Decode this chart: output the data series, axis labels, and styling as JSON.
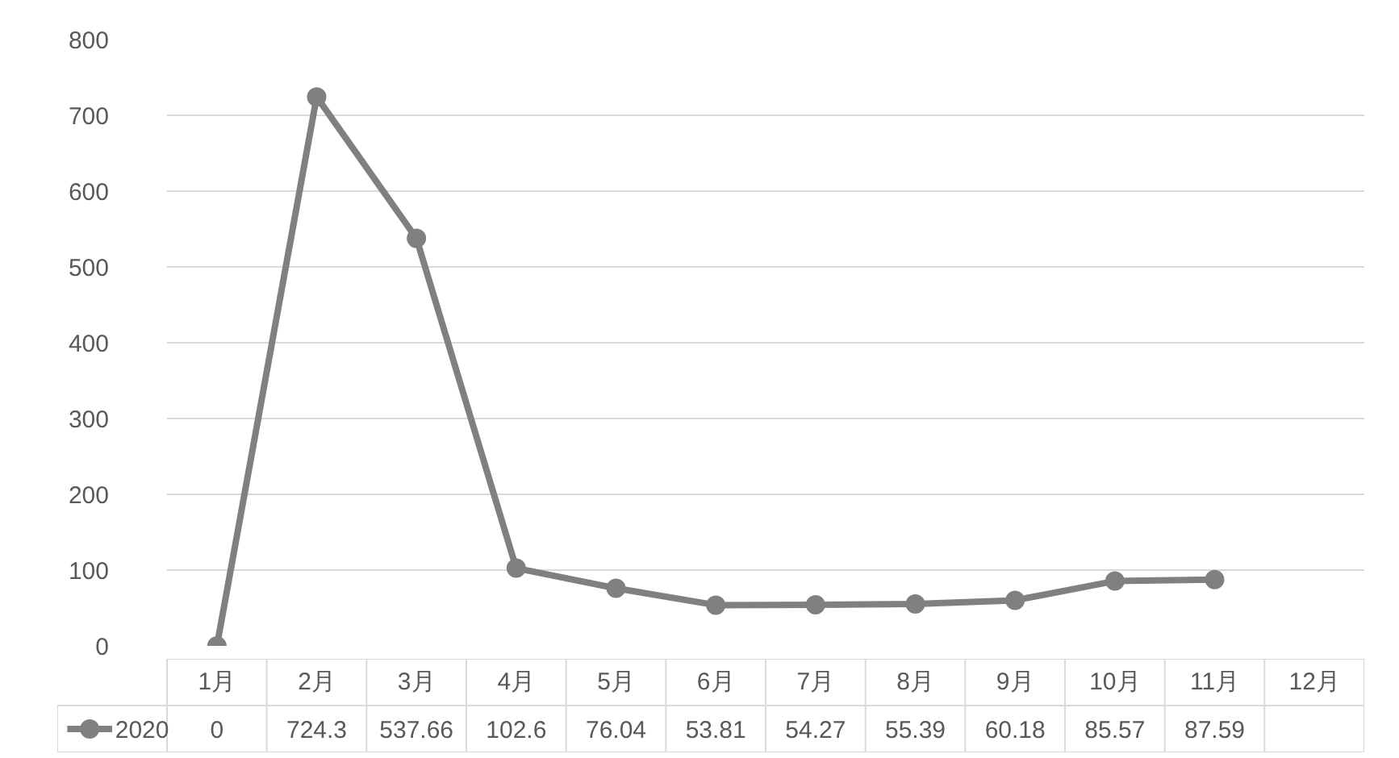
{
  "chart_data": {
    "type": "line",
    "categories": [
      "1月",
      "2月",
      "3月",
      "4月",
      "5月",
      "6月",
      "7月",
      "8月",
      "9月",
      "10月",
      "11月",
      "12月"
    ],
    "series": [
      {
        "name": "2020",
        "color": "#808080",
        "values": [
          0,
          724.3,
          537.66,
          102.6,
          76.04,
          53.81,
          54.27,
          55.39,
          60.18,
          85.57,
          87.59,
          null
        ]
      }
    ],
    "ylim": [
      0,
      800
    ],
    "yticks": [
      0,
      100,
      200,
      300,
      400,
      500,
      600,
      700,
      800
    ],
    "grid": "y",
    "marker": "circle",
    "line_style": "solid",
    "legend": "bottom",
    "data_labels": true
  }
}
